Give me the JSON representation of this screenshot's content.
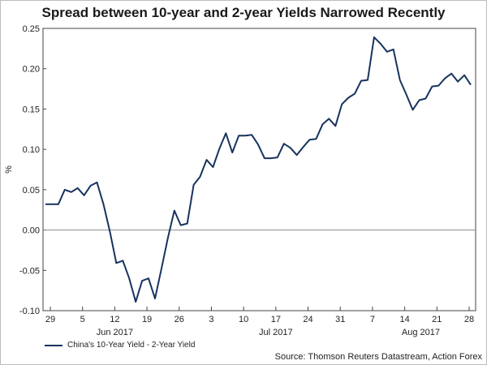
{
  "chart_data": {
    "type": "line",
    "title": "Spread between 10-year and 2-year Yields Narrowed Recently",
    "ylabel": "%",
    "xlabel": "",
    "ylim": [
      -0.1,
      0.25
    ],
    "yticks": [
      0.25,
      0.2,
      0.15,
      0.1,
      0.05,
      0.0,
      -0.05,
      -0.1
    ],
    "ytick_labels": [
      "0.25",
      "0.20",
      "0.15",
      "0.10",
      "0.05",
      "0.00",
      "-0.05",
      "-0.10"
    ],
    "xtick_labels": [
      "29",
      "5",
      "12",
      "19",
      "26",
      "3",
      "10",
      "17",
      "24",
      "31",
      "7",
      "14",
      "21",
      "28"
    ],
    "month_labels": [
      {
        "label": "Jun 2017",
        "at_tick": 2
      },
      {
        "label": "Jul 2017",
        "at_tick": 7
      },
      {
        "label": "Aug 2017",
        "at_tick": 11.5
      }
    ],
    "zero_line": true,
    "series": [
      {
        "name": "China's 10-Year Yield - 2-Year Yield",
        "color": "#17335f",
        "values": [
          0.032,
          0.032,
          0.032,
          0.05,
          0.047,
          0.052,
          0.043,
          0.055,
          0.059,
          0.032,
          -0.002,
          -0.041,
          -0.038,
          -0.06,
          -0.089,
          -0.063,
          -0.06,
          -0.085,
          -0.048,
          -0.01,
          0.024,
          0.006,
          0.008,
          0.056,
          0.066,
          0.087,
          0.078,
          0.101,
          0.12,
          0.096,
          0.117,
          0.117,
          0.118,
          0.106,
          0.089,
          0.089,
          0.09,
          0.107,
          0.102,
          0.093,
          0.103,
          0.112,
          0.113,
          0.131,
          0.138,
          0.129,
          0.156,
          0.164,
          0.169,
          0.185,
          0.186,
          0.239,
          0.231,
          0.221,
          0.224,
          0.186,
          0.168,
          0.149,
          0.161,
          0.163,
          0.178,
          0.179,
          0.188,
          0.194,
          0.184,
          0.192,
          0.18
        ]
      }
    ]
  },
  "legend": {
    "label": "China's 10-Year Yield - 2-Year Yield"
  },
  "source": "Source: Thomson Reuters Datastream, Action Forex"
}
